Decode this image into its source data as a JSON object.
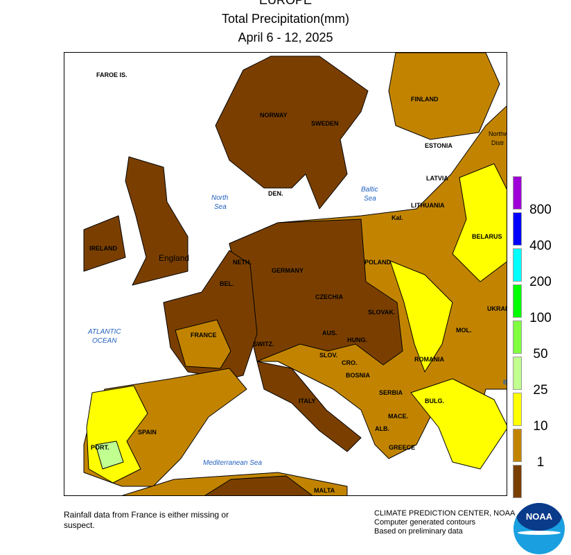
{
  "header": {
    "region": "EUROPE",
    "title": "Total Precipitation(mm)",
    "period": "April 6 - 12, 2025"
  },
  "map": {
    "colors": {
      "lt1": "#7a3f00",
      "1to10": "#c28400",
      "10to25": "#ffff00",
      "25to50": "#c0ff90",
      "sea": "#ffffff",
      "border": "#000000"
    },
    "labels": [
      "FAROE IS.",
      "NORWAY",
      "SWEDEN",
      "FINLAND",
      "ESTONIA",
      "Northw",
      "Distr",
      "LATVIA",
      "LITHUANIA",
      "Kal.",
      "DEN.",
      "IRELAND",
      "England",
      "NETH.",
      "BEL.",
      "GERMANY",
      "POLAND",
      "BELARUS",
      "CZECHIA",
      "SLOVAK.",
      "UKRAI",
      "MOL.",
      "HUNG.",
      "AUS.",
      "SWITZ.",
      "FRANCE",
      "SLOV.",
      "CRO.",
      "BOSNIA",
      "ROMANIA",
      "SERBIA",
      "BULG.",
      "MACE.",
      "ALB.",
      "GREECE",
      "ITALY",
      "SPAIN",
      "PORT.",
      "MALTA",
      "B"
    ],
    "seas": [
      "North",
      "Sea",
      "Baltic",
      "Sea",
      "ATLANTIC",
      "OCEAN",
      "Mediterranean Sea"
    ]
  },
  "legend": {
    "colors": [
      "#a000d8",
      "#0000ff",
      "#00ffff",
      "#00ff00",
      "#80ff40",
      "#c0ff90",
      "#ffff00",
      "#c28400",
      "#7a3f00"
    ],
    "labels": [
      "800",
      "400",
      "200",
      "100",
      "50",
      "25",
      "10",
      "1"
    ]
  },
  "footer": {
    "note_line1": "Rainfall data from France is either missing or",
    "note_line2": "suspect.",
    "credit1": "CLIMATE PREDICTION CENTER, NOAA",
    "credit2": "Computer generated contours",
    "credit3": "Based on preliminary data",
    "logo_text": "NOAA"
  }
}
